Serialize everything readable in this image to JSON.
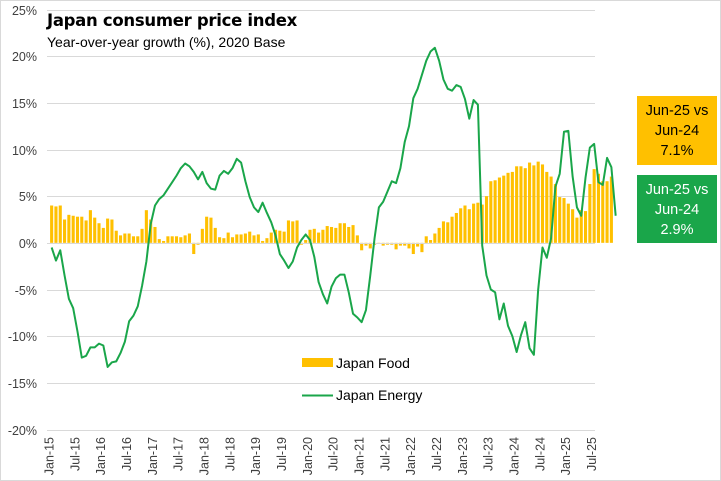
{
  "chart_data": {
    "type": "bar+line",
    "title": "Japan consumer price index",
    "subtitle": "Year-over-year growth (%), 2020 Base",
    "xlabel": "",
    "ylabel": "",
    "ylim": [
      -20,
      25
    ],
    "yticks": [
      25,
      20,
      15,
      10,
      5,
      0,
      -5,
      -10,
      -15,
      -20
    ],
    "ytick_labels": [
      "25%",
      "20%",
      "15%",
      "10%",
      "5%",
      "0%",
      "-5%",
      "-10%",
      "-15%",
      "-20%"
    ],
    "xtick_labels": [
      "Jan-15",
      "Jul-15",
      "Jan-16",
      "Jul-16",
      "Jan-17",
      "Jul-17",
      "Jan-18",
      "Jul-18",
      "Jan-19",
      "Jul-19",
      "Jan-20",
      "Jul-20",
      "Jan-21",
      "Jul-21",
      "Jan-22",
      "Jul-22",
      "Jan-23",
      "Jul-23",
      "Jan-24",
      "Jul-24",
      "Jan-25",
      "Jul-25"
    ],
    "grid": true,
    "legend_position": "bottom-center",
    "x_start": "Jan-15",
    "x_end": "Jun-25",
    "series": [
      {
        "name": "Japan Food",
        "type": "bar",
        "color": "#FFC000",
        "values": [
          4.0,
          3.9,
          4.0,
          2.5,
          3.0,
          2.9,
          2.8,
          2.8,
          2.4,
          3.5,
          2.7,
          2.1,
          1.6,
          2.6,
          2.5,
          1.3,
          0.8,
          1.0,
          1.0,
          0.7,
          0.7,
          1.5,
          3.5,
          2.5,
          1.7,
          0.4,
          0.2,
          0.7,
          0.7,
          0.7,
          0.6,
          0.8,
          1.0,
          -1.2,
          -0.2,
          1.5,
          2.8,
          2.7,
          1.6,
          0.6,
          0.5,
          1.1,
          0.6,
          0.9,
          0.9,
          1.0,
          1.2,
          0.8,
          0.9,
          0.2,
          0.5,
          1.1,
          1.4,
          1.3,
          1.2,
          2.4,
          2.3,
          2.4,
          -0.2,
          0.3,
          1.4,
          1.5,
          1.1,
          1.4,
          1.8,
          1.7,
          1.6,
          2.1,
          2.1,
          1.7,
          1.9,
          0.8,
          -0.8,
          -0.3,
          -0.6,
          -0.2,
          -0.1,
          -0.3,
          -0.2,
          -0.2,
          -0.7,
          -0.3,
          -0.3,
          -0.6,
          -1.2,
          -0.4,
          -1.0,
          0.7,
          0.3,
          1.0,
          1.6,
          2.3,
          2.2,
          2.8,
          3.2,
          3.7,
          4.0,
          3.6,
          4.2,
          4.3,
          4.1,
          5.0,
          6.6,
          6.7,
          7.0,
          7.2,
          7.5,
          7.6,
          8.2,
          8.2,
          8.0,
          8.6,
          8.3,
          8.7,
          8.4,
          7.6,
          7.1,
          6.3,
          4.9,
          4.8,
          4.2,
          3.6,
          2.7,
          3.5,
          3.4,
          6.3,
          7.9,
          7.4,
          6.6,
          6.6,
          7.1
        ]
      },
      {
        "name": "Japan Energy",
        "type": "line",
        "color": "#1AA64A",
        "values": [
          -0.5,
          -1.9,
          -0.8,
          -3.5,
          -6.0,
          -7.0,
          -9.5,
          -12.3,
          -12.1,
          -11.2,
          -11.2,
          -10.8,
          -11.0,
          -13.3,
          -12.8,
          -12.7,
          -11.8,
          -10.6,
          -8.4,
          -7.8,
          -6.8,
          -4.6,
          -2.0,
          2.0,
          4.0,
          4.7,
          5.1,
          5.8,
          6.5,
          7.2,
          8.0,
          8.5,
          8.2,
          7.6,
          6.8,
          7.6,
          6.4,
          5.8,
          5.7,
          7.2,
          7.7,
          7.4,
          8.0,
          9.0,
          8.6,
          6.6,
          4.9,
          3.8,
          3.3,
          4.3,
          3.2,
          2.2,
          0.8,
          -1.2,
          -1.9,
          -2.7,
          -2.0,
          -0.5,
          0.3,
          0.9,
          0.3,
          -1.5,
          -4.2,
          -5.5,
          -6.5,
          -4.7,
          -3.8,
          -3.4,
          -3.4,
          -5.3,
          -7.6,
          -8.0,
          -8.5,
          -7.2,
          -3.5,
          0.5,
          3.8,
          4.4,
          5.5,
          6.6,
          6.4,
          8.0,
          10.8,
          12.5,
          15.5,
          16.5,
          18.0,
          19.5,
          20.5,
          20.9,
          19.5,
          17.5,
          16.5,
          16.3,
          16.9,
          16.7,
          15.4,
          13.3,
          15.3,
          14.8,
          -0.3,
          -3.5,
          -5.0,
          -5.3,
          -8.2,
          -6.5,
          -8.9,
          -10.0,
          -11.7,
          -9.9,
          -8.5,
          -11.3,
          -12.0,
          -5.0,
          -0.5,
          -1.6,
          0.5,
          6.0,
          7.4,
          11.9,
          12.0,
          7.1,
          3.8,
          2.9,
          7.0,
          10.2,
          10.6,
          6.5,
          6.2,
          9.1,
          8.1,
          2.9
        ]
      }
    ]
  },
  "callouts": {
    "food": {
      "line1": "Jun-25 vs",
      "line2": "Jun-24",
      "value": "7.1%",
      "color": "#FFC000"
    },
    "energy": {
      "line1": "Jun-25 vs",
      "line2": "Jun-24",
      "value": "2.9%",
      "color": "#1AA64A"
    }
  },
  "legend": {
    "food_label": "Japan Food",
    "energy_label": "Japan Energy"
  }
}
